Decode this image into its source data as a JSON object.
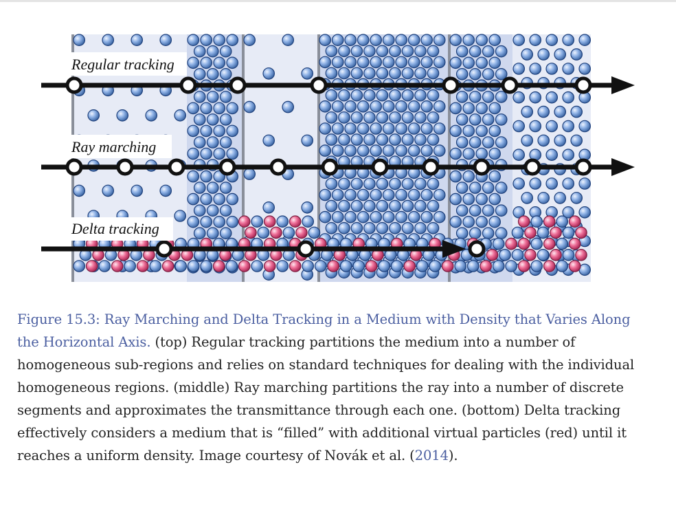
{
  "figure": {
    "labels": {
      "regular": "Regular tracking",
      "marching": "Ray marching",
      "delta": "Delta tracking"
    },
    "colors": {
      "particle_blue": "#7fa5dc",
      "particle_blue_edge": "#1d3f7a",
      "particle_red": "#e0507e",
      "particle_red_edge": "#7a1d3f",
      "region_light": "#e7ebf6",
      "region_dark": "#cfd8ee",
      "arrow": "#111111"
    }
  },
  "caption": {
    "title": "Figure 15.3: Ray Marching and Delta Tracking in a Medium with Density that Varies Along the Horizontal Axis.",
    "body_before_link": " (top) Regular tracking partitions the medium into a number of homogeneous sub-regions and relies on standard techniques for dealing with the individual homogeneous regions. (middle) Ray marching partitions the ray into a number of discrete segments and approximates the transmittance through each one. (bottom) Delta tracking effectively considers a medium that is “filled” with additional virtual particles (red) until it reaches a uniform density. Image courtesy of Novák et al. (",
    "link_text": "2014",
    "body_after_link": ")."
  }
}
